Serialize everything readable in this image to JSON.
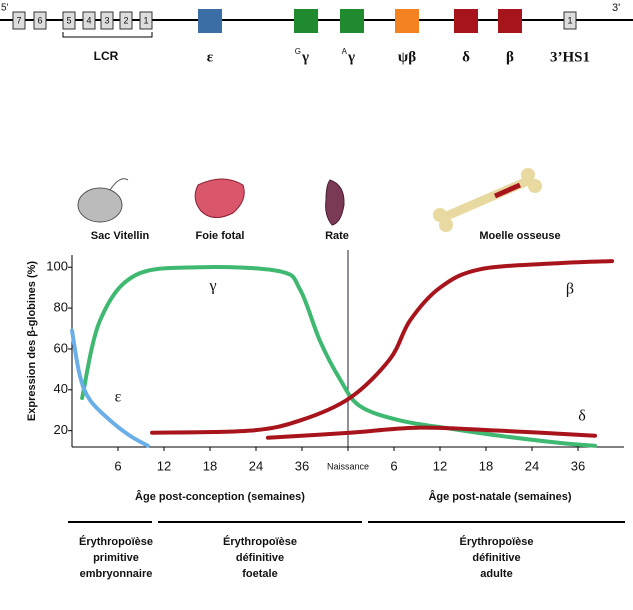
{
  "gene_map": {
    "five_prime": "5'",
    "three_prime": "3'",
    "lcr_boxes": [
      "7",
      "6",
      "5",
      "4",
      "3",
      "2",
      "1"
    ],
    "lcr_label": "LCR",
    "genes": [
      {
        "label": "ε",
        "color": "#3b6ea5"
      },
      {
        "superscript": "G",
        "label": "γ",
        "color": "#1f8a2e"
      },
      {
        "superscript": "A",
        "label": "γ",
        "color": "#1f8a2e"
      },
      {
        "label": "ψβ",
        "color": "#f58220"
      },
      {
        "label": "δ",
        "color": "#a8141c"
      },
      {
        "label": "β",
        "color": "#a8141c"
      }
    ],
    "hs_box": "1",
    "hs_label": "3’HS1"
  },
  "organs": [
    "Sac Vitellin",
    "Foie fotal",
    "Rate",
    "Moelle osseuse"
  ],
  "chart_data": {
    "type": "line",
    "y_label": "Expression des β-globines (%)",
    "x_label_left": "Âge post-conception (semaines)",
    "x_label_right": "Âge post-natale (semaines)",
    "xlim": [
      -1,
      11
    ],
    "ylim": [
      12,
      106
    ],
    "xticks": [
      {
        "value": 0,
        "label": "6"
      },
      {
        "value": 1,
        "label": "12"
      },
      {
        "value": 2,
        "label": "18"
      },
      {
        "value": 3,
        "label": "24"
      },
      {
        "value": 4,
        "label": "36"
      },
      {
        "value": 5,
        "label": "Naissance"
      },
      {
        "value": 6,
        "label": "6"
      },
      {
        "value": 7,
        "label": "12"
      },
      {
        "value": 8,
        "label": "18"
      },
      {
        "value": 9,
        "label": "24"
      },
      {
        "value": 10,
        "label": "36"
      }
    ],
    "yticks": [
      20,
      40,
      60,
      80,
      100
    ],
    "series": [
      {
        "name": "γ",
        "color": "#3fb871",
        "x": [
          -0.78,
          -0.39,
          0.37,
          1.78,
          3.52,
          3.96,
          4.39,
          4.83,
          5.26,
          6.13,
          7.22,
          8.3,
          9.6,
          10.37
        ],
        "y": [
          36,
          74,
          96,
          100,
          98,
          89,
          64,
          45,
          32,
          25,
          21,
          17.5,
          14,
          12.6
        ]
      },
      {
        "name": "ε",
        "color": "#6aaee8",
        "x": [
          -1,
          -0.83,
          -0.61,
          -0.17,
          0.26,
          0.65
        ],
        "y": [
          69,
          47,
          35,
          25,
          17.5,
          12.6
        ]
      },
      {
        "name": "β",
        "color": "#a8141c",
        "x": [
          0.74,
          2.87,
          3.96,
          5.04,
          5.91,
          6.35,
          7,
          7.87,
          9.6,
          10.74
        ],
        "y": [
          19,
          20,
          25,
          36,
          55,
          74,
          90,
          99,
          102,
          103
        ]
      },
      {
        "name": "δ",
        "color": "#a8141c",
        "x": [
          3.26,
          5.04,
          6.57,
          8.3,
          10.37
        ],
        "y": [
          16.5,
          19,
          21.5,
          20,
          17.5
        ]
      }
    ]
  },
  "phases": [
    [
      "Érythropoïèse",
      "primitive",
      "embryonnaire"
    ],
    [
      "Érythropoïèse",
      "définitive",
      "foetale"
    ],
    [
      "Érythropoïèse",
      "définitive",
      "adulte"
    ]
  ]
}
